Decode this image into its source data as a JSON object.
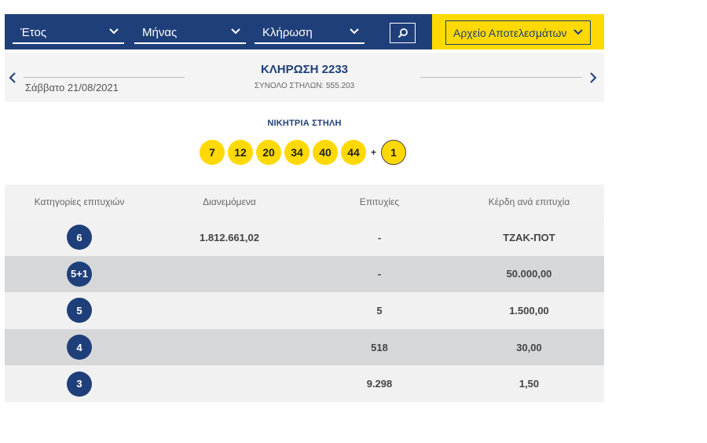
{
  "filters": {
    "year_label": "Έτος",
    "month_label": "Μήνας",
    "draw_label": "Κλήρωση",
    "archive_label": "Αρχείο Αποτελεσμάτων"
  },
  "draw": {
    "title": "ΚΛΗΡΩΣΗ 2233",
    "date": "Σάββατο 21/08/2021",
    "total_columns": "ΣΥΝΟΛΟ ΣΤΗΛΩΝ: 555.203"
  },
  "winning": {
    "title": "ΝΙΚΗΤΡΙΑ ΣΤΗΛΗ",
    "numbers": [
      "7",
      "12",
      "20",
      "34",
      "40",
      "44"
    ],
    "plus": "+",
    "joker": "1"
  },
  "table": {
    "headers": [
      "Κατηγορίες επιτυχιών",
      "Διανεμόμενα",
      "Επιτυχίες",
      "Κέρδη ανά επιτυχία"
    ],
    "rows": [
      {
        "category": "6",
        "distributed": "1.812.661,02",
        "winners": "-",
        "prize": "ΤΖΑΚ-ΠΟΤ"
      },
      {
        "category": "5+1",
        "distributed": "",
        "winners": "-",
        "prize": "50.000,00"
      },
      {
        "category": "5",
        "distributed": "",
        "winners": "5",
        "prize": "1.500,00"
      },
      {
        "category": "4",
        "distributed": "",
        "winners": "518",
        "prize": "30,00"
      },
      {
        "category": "3",
        "distributed": "",
        "winners": "9.298",
        "prize": "1,50"
      }
    ]
  },
  "colors": {
    "navy": "#1f3f7a",
    "yellow": "#ffd900",
    "row_light": "#f1f1f1",
    "row_dark": "#d6d7d9"
  },
  "icons": [
    "chevron-down-icon",
    "search-icon",
    "chevron-left-icon",
    "chevron-right-icon"
  ]
}
